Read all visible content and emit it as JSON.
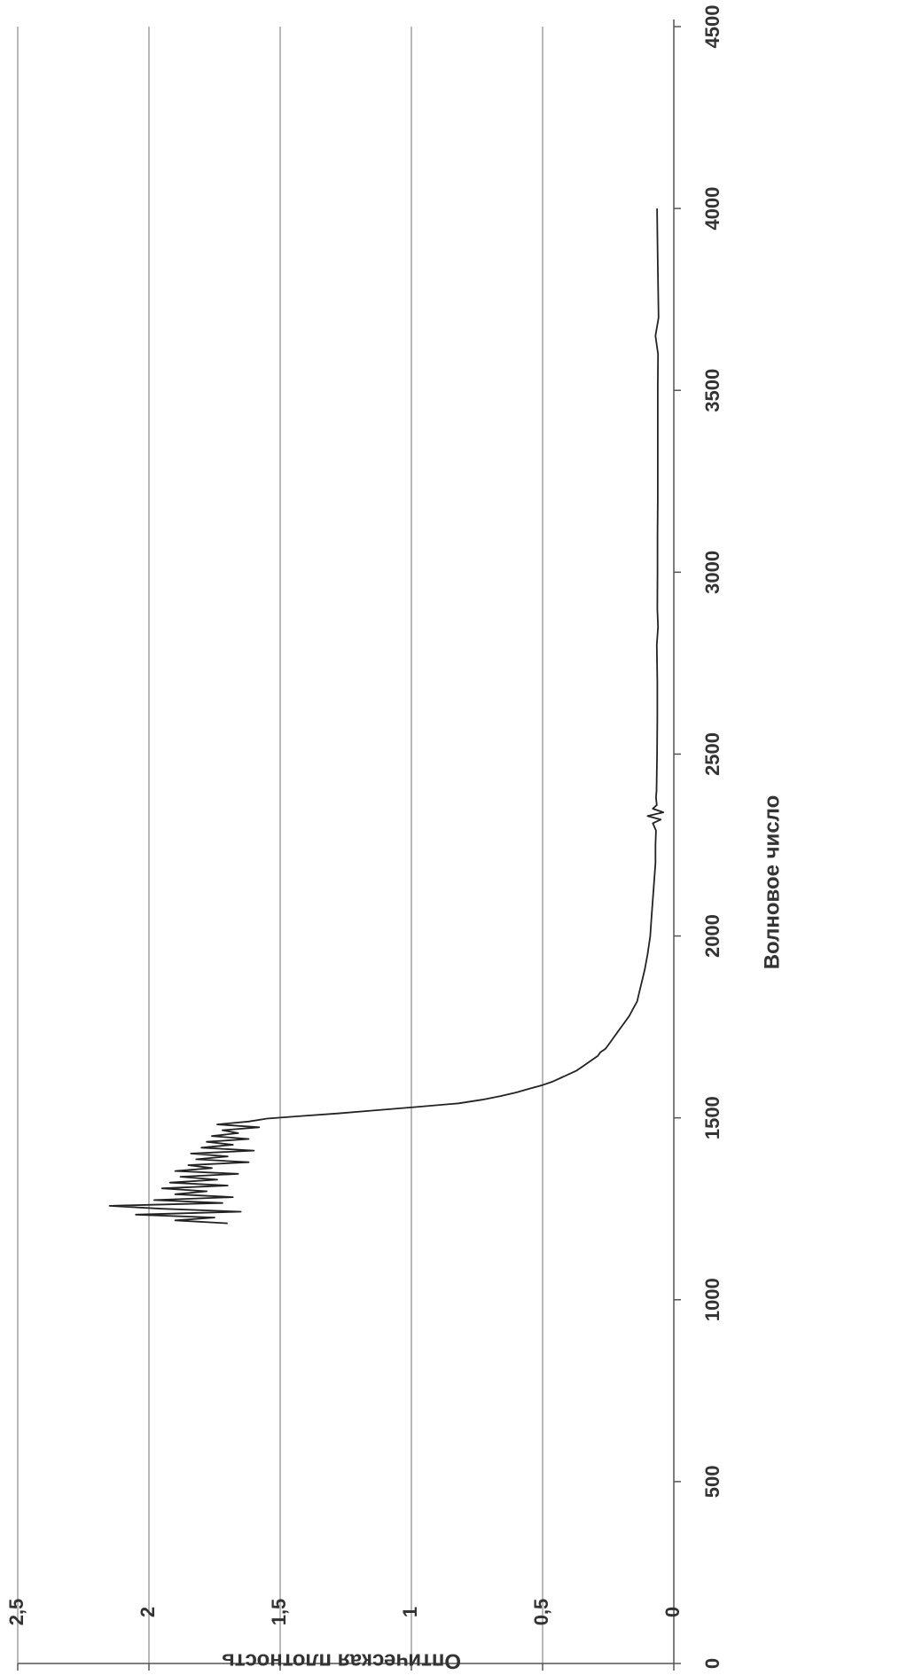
{
  "chart_data": {
    "type": "line",
    "xlabel": "Волновое число",
    "ylabel": "Оптическая плотность",
    "xlim": [
      0,
      4500
    ],
    "ylim": [
      0,
      2.5
    ],
    "x_ticks": [
      {
        "value": 0,
        "label": "0"
      },
      {
        "value": 500,
        "label": "500"
      },
      {
        "value": 1000,
        "label": "1000"
      },
      {
        "value": 1500,
        "label": "1500"
      },
      {
        "value": 2000,
        "label": "2000"
      },
      {
        "value": 2500,
        "label": "2500"
      },
      {
        "value": 3000,
        "label": "3000"
      },
      {
        "value": 3500,
        "label": "3500"
      },
      {
        "value": 4000,
        "label": "4000"
      },
      {
        "value": 4500,
        "label": "4500"
      }
    ],
    "y_ticks": [
      {
        "value": 0,
        "label": "0"
      },
      {
        "value": 0.5,
        "label": "0,5"
      },
      {
        "value": 1,
        "label": "1"
      },
      {
        "value": 1.5,
        "label": "1,5"
      },
      {
        "value": 2,
        "label": "2"
      },
      {
        "value": 2.5,
        "label": "2,5"
      }
    ],
    "grid": "horizontal",
    "orientation": "rotated-90-clockwise",
    "line_color": "#222222",
    "series": [
      {
        "x": [
          1210,
          1218,
          1226,
          1234,
          1242,
          1250,
          1258,
          1266,
          1274,
          1282,
          1290,
          1298,
          1306,
          1314,
          1322,
          1330,
          1338,
          1346,
          1354,
          1362,
          1370,
          1378,
          1386,
          1394,
          1402,
          1410,
          1418,
          1426,
          1434,
          1442,
          1450,
          1458,
          1466,
          1474,
          1482,
          1490,
          1498,
          1505,
          1512,
          1520,
          1530,
          1540,
          1550,
          1560,
          1570,
          1580,
          1590,
          1600,
          1610,
          1620,
          1630,
          1640,
          1650,
          1660,
          1670,
          1680,
          1690,
          1700,
          1710,
          1720,
          1730,
          1740,
          1750,
          1760,
          1780,
          1800,
          1820,
          1850,
          1880,
          1910,
          1950,
          2000,
          2050,
          2100,
          2150,
          2200,
          2250,
          2290,
          2310,
          2320,
          2330,
          2340,
          2350,
          2360,
          2380,
          2400,
          2450,
          2500,
          2600,
          2700,
          2800,
          2850,
          2900,
          3000,
          3100,
          3200,
          3300,
          3400,
          3500,
          3600,
          3650,
          3700,
          3800,
          3900,
          4000
        ],
        "y": [
          1.7,
          1.9,
          1.75,
          2.05,
          1.65,
          1.95,
          2.15,
          1.72,
          1.98,
          1.68,
          1.9,
          1.78,
          1.95,
          1.7,
          1.92,
          1.74,
          1.88,
          1.66,
          1.9,
          1.76,
          1.85,
          1.62,
          1.82,
          1.7,
          1.84,
          1.6,
          1.8,
          1.68,
          1.78,
          1.62,
          1.76,
          1.66,
          1.72,
          1.58,
          1.74,
          1.62,
          1.55,
          1.42,
          1.28,
          1.15,
          0.98,
          0.82,
          0.73,
          0.66,
          0.6,
          0.55,
          0.5,
          0.46,
          0.43,
          0.4,
          0.37,
          0.35,
          0.33,
          0.31,
          0.29,
          0.28,
          0.26,
          0.25,
          0.24,
          0.23,
          0.22,
          0.21,
          0.2,
          0.19,
          0.17,
          0.155,
          0.14,
          0.13,
          0.12,
          0.11,
          0.1,
          0.09,
          0.085,
          0.08,
          0.075,
          0.07,
          0.07,
          0.068,
          0.08,
          0.05,
          0.1,
          0.04,
          0.08,
          0.065,
          0.068,
          0.066,
          0.065,
          0.064,
          0.063,
          0.063,
          0.065,
          0.06,
          0.063,
          0.062,
          0.062,
          0.061,
          0.061,
          0.061,
          0.061,
          0.06,
          0.07,
          0.058,
          0.06,
          0.062,
          0.064
        ]
      }
    ]
  }
}
